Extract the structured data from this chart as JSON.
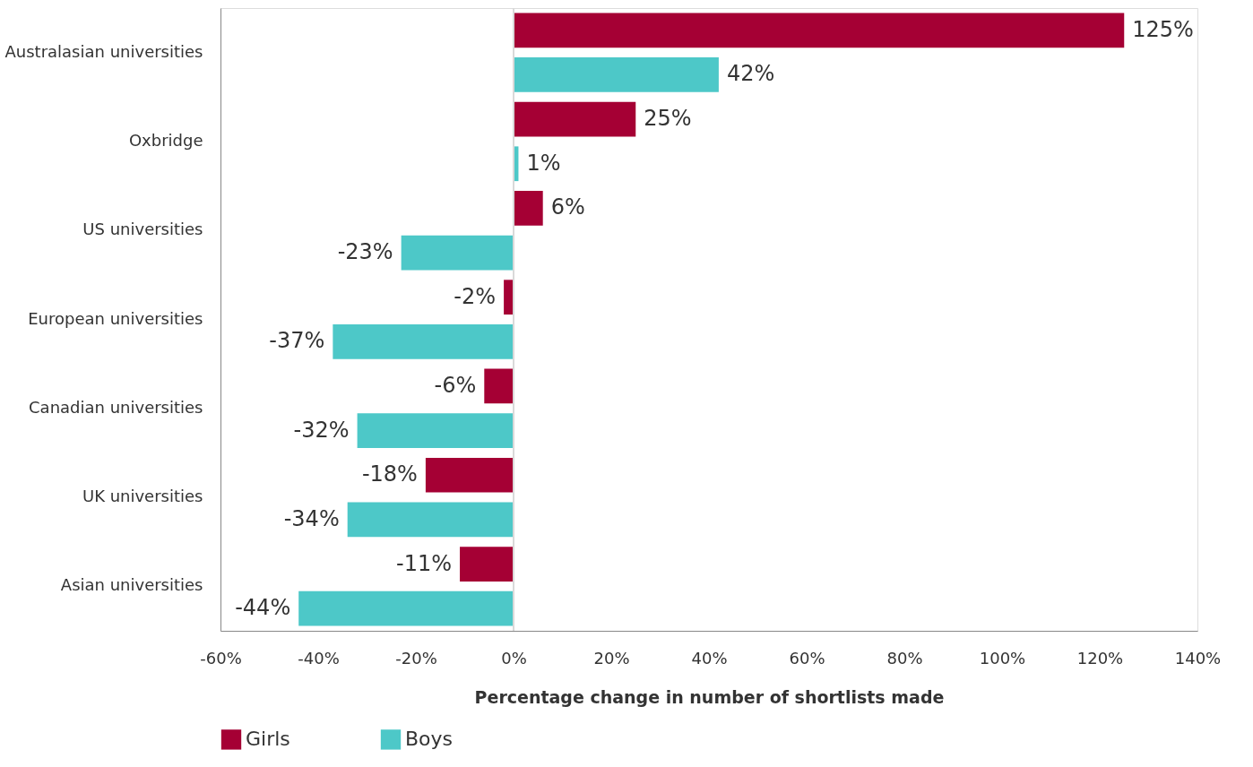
{
  "chart_data": {
    "type": "bar",
    "orientation": "horizontal",
    "xlabel": "Percentage change in number of shortlists made",
    "categories": [
      "Australasian universities",
      "Oxbridge",
      "US universities",
      "European universities",
      "Canadian universities",
      "UK universities",
      "Asian universities"
    ],
    "series": [
      {
        "name": "Girls",
        "color": "#a50034",
        "values": [
          125,
          25,
          6,
          -2,
          -6,
          -18,
          -11
        ],
        "value_labels": [
          "125%",
          "25%",
          "6%",
          "-2%",
          "-6%",
          "-18%",
          "-11%"
        ]
      },
      {
        "name": "Boys",
        "color": "#4dc8c8",
        "values": [
          42,
          1,
          -23,
          -37,
          -32,
          -34,
          -44
        ],
        "value_labels": [
          "42%",
          "1%",
          "-23%",
          "-37%",
          "-32%",
          "-34%",
          "-44%"
        ]
      }
    ],
    "xlim": [
      -60,
      140
    ],
    "xticks": [
      {
        "value": -60,
        "label": "-60%"
      },
      {
        "value": -40,
        "label": "-40%"
      },
      {
        "value": -20,
        "label": "-20%"
      },
      {
        "value": 0,
        "label": "0%"
      },
      {
        "value": 20,
        "label": "20%"
      },
      {
        "value": 40,
        "label": "40%"
      },
      {
        "value": 60,
        "label": "60%"
      },
      {
        "value": 80,
        "label": "80%"
      },
      {
        "value": 100,
        "label": "100%"
      },
      {
        "value": 120,
        "label": "120%"
      },
      {
        "value": 140,
        "label": "140%"
      }
    ],
    "ref_lines": [
      {
        "axis": "x",
        "value": 0,
        "color": "#d9d9d9"
      }
    ],
    "grid": false,
    "legend": "bottom"
  }
}
